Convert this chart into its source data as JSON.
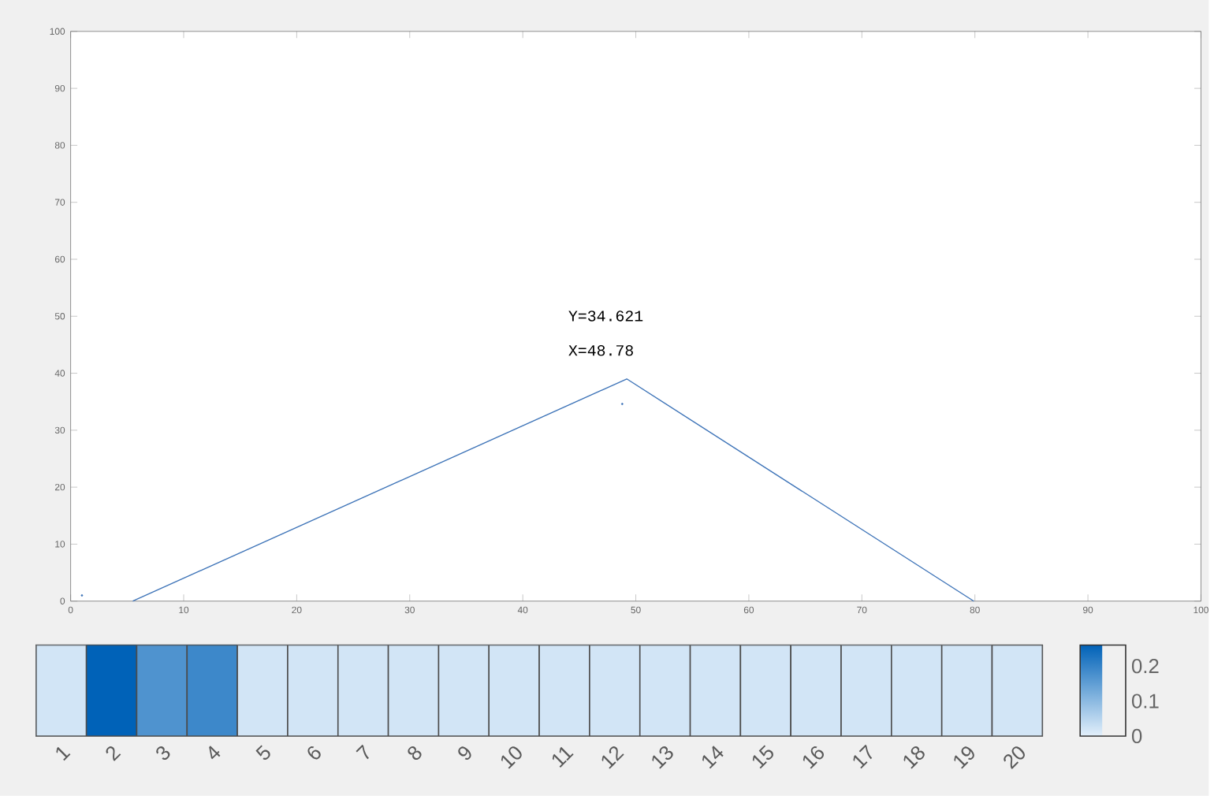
{
  "chart_data": [
    {
      "type": "line",
      "xlim": [
        0,
        100
      ],
      "ylim": [
        0,
        100
      ],
      "xticks": [
        0,
        10,
        20,
        30,
        40,
        50,
        60,
        70,
        80,
        90,
        100
      ],
      "yticks": [
        0,
        10,
        20,
        30,
        40,
        50,
        60,
        70,
        80,
        90,
        100
      ],
      "grid": false,
      "series": [
        {
          "type": "line",
          "color": "#3e74b8",
          "x": [
            5.5,
            49.2,
            79.9
          ],
          "values": [
            0,
            39,
            0
          ]
        },
        {
          "type": "scatter",
          "color": "#3e74b8",
          "x": [
            48.8,
            1
          ],
          "values": [
            34.6,
            1
          ]
        }
      ],
      "annotations": [
        "Y=34.621",
        "X=48.78"
      ]
    },
    {
      "type": "heatmap",
      "categories": [
        "1",
        "2",
        "3",
        "4",
        "5",
        "6",
        "7",
        "8",
        "9",
        "10",
        "11",
        "12",
        "13",
        "14",
        "15",
        "16",
        "17",
        "18",
        "19",
        "20"
      ],
      "y_categories": [
        null
      ],
      "cells": [
        [
          0.02,
          0.26,
          0.17,
          0.19,
          0.02,
          0.02,
          0.02,
          0.02,
          0.02,
          0.02,
          0.02,
          0.02,
          0.02,
          0.02,
          0.02,
          0.02,
          0.02,
          0.02,
          0.02,
          0.02
        ]
      ],
      "clim": [
        0,
        0.26
      ],
      "cticks": [
        0,
        0.1,
        0.2
      ],
      "tick_labels": "x"
    }
  ]
}
